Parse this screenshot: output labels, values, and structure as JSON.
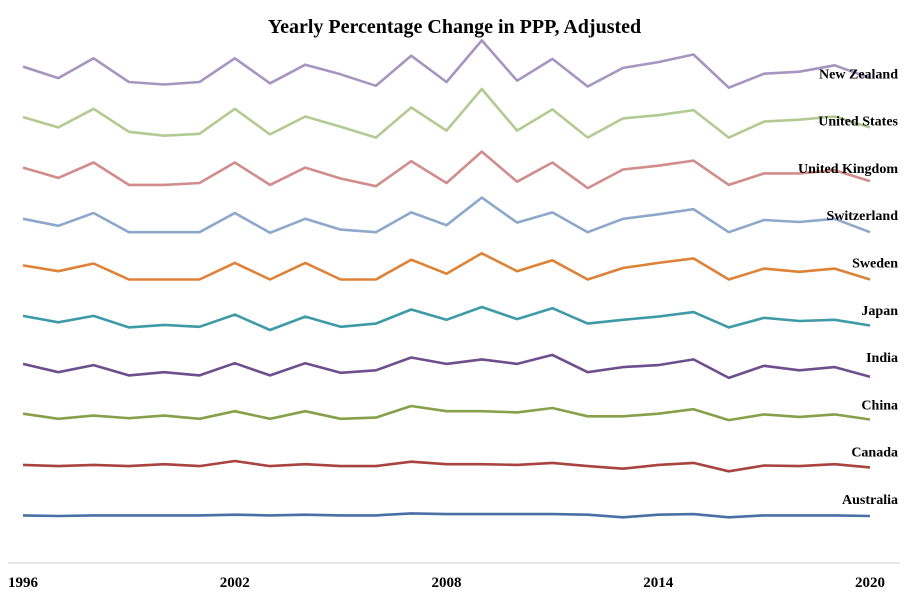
{
  "chart_data": {
    "type": "line",
    "title": "Yearly  Percentage Change in  PPP, Adjusted",
    "xlabel": "",
    "ylabel": "",
    "x": [
      1996,
      1997,
      1998,
      1999,
      2000,
      2001,
      2002,
      2003,
      2004,
      2005,
      2006,
      2007,
      2008,
      2009,
      2010,
      2011,
      2012,
      2013,
      2014,
      2015,
      2016,
      2017,
      2018,
      2019,
      2020
    ],
    "x_ticks": [
      1996,
      2002,
      2008,
      2014,
      2020
    ],
    "xlim": [
      1996,
      2020
    ],
    "layout": "stacked-ridgeline",
    "grid": false,
    "legend": "inline-right",
    "series": [
      {
        "name": "Australia",
        "color": "#4a6fa5",
        "values": [
          0.1,
          0.0,
          0.1,
          0.1,
          0.1,
          0.1,
          0.2,
          0.1,
          0.2,
          0.1,
          0.1,
          0.4,
          0.3,
          0.3,
          0.3,
          0.3,
          0.2,
          -0.2,
          0.2,
          0.3,
          -0.2,
          0.1,
          0.1,
          0.1,
          0.0
        ]
      },
      {
        "name": "Canada",
        "color": "#a84340",
        "values": [
          0.6,
          0.4,
          0.6,
          0.4,
          0.7,
          0.4,
          1.2,
          0.4,
          0.7,
          0.4,
          0.4,
          1.1,
          0.7,
          0.7,
          0.6,
          0.9,
          0.4,
          0.0,
          0.6,
          0.9,
          -0.4,
          0.5,
          0.4,
          0.7,
          0.2
        ]
      },
      {
        "name": "China",
        "color": "#86a14a",
        "values": [
          1.2,
          0.4,
          0.9,
          0.5,
          0.9,
          0.4,
          1.6,
          0.4,
          1.6,
          0.4,
          0.6,
          2.4,
          1.6,
          1.6,
          1.4,
          2.1,
          0.8,
          0.8,
          1.2,
          1.9,
          0.2,
          1.1,
          0.7,
          1.1,
          0.3
        ]
      },
      {
        "name": "India",
        "color": "#6c4f8c",
        "values": [
          1.6,
          0.3,
          1.4,
          -0.2,
          0.3,
          -0.2,
          1.7,
          -0.2,
          1.7,
          0.2,
          0.6,
          2.6,
          1.6,
          2.3,
          1.6,
          3.0,
          0.3,
          1.1,
          1.4,
          2.3,
          -0.6,
          1.3,
          0.6,
          1.1,
          -0.4
        ]
      },
      {
        "name": "Japan",
        "color": "#3f9aa8",
        "values": [
          1.7,
          0.7,
          1.7,
          -0.1,
          0.3,
          0.0,
          1.9,
          -0.5,
          1.6,
          0.0,
          0.5,
          2.7,
          1.1,
          3.1,
          1.2,
          2.9,
          0.5,
          1.1,
          1.6,
          2.3,
          -0.1,
          1.4,
          0.9,
          1.1,
          0.2
        ]
      },
      {
        "name": "Sweden",
        "color": "#dd8237",
        "values": [
          2.2,
          1.3,
          2.5,
          0.0,
          0.0,
          0.0,
          2.6,
          0.0,
          2.6,
          0.0,
          0.0,
          3.1,
          0.9,
          4.1,
          1.3,
          3.0,
          0.0,
          1.8,
          2.6,
          3.3,
          0.0,
          1.7,
          1.2,
          1.7,
          0.0
        ]
      },
      {
        "name": "Switzerland",
        "color": "#8ea8cc",
        "values": [
          2.1,
          1.0,
          3.0,
          0.0,
          0.0,
          0.0,
          3.0,
          -0.1,
          2.1,
          0.4,
          0.0,
          3.1,
          1.1,
          5.4,
          1.5,
          3.1,
          0.0,
          2.1,
          2.8,
          3.6,
          0.0,
          1.9,
          1.6,
          2.1,
          0.0
        ]
      },
      {
        "name": "United Kingdom",
        "color": "#d08d8b",
        "values": [
          2.7,
          1.1,
          3.5,
          0.0,
          0.0,
          0.3,
          3.5,
          0.0,
          2.7,
          1.0,
          -0.2,
          3.7,
          0.3,
          5.2,
          0.5,
          3.5,
          -0.5,
          2.4,
          3.0,
          3.8,
          0.0,
          1.8,
          1.8,
          2.3,
          0.6
        ]
      },
      {
        "name": "United States",
        "color": "#b3cb93",
        "values": [
          3.2,
          1.6,
          4.5,
          0.9,
          0.3,
          0.6,
          4.5,
          0.5,
          3.3,
          1.7,
          0.0,
          4.7,
          1.1,
          7.6,
          1.1,
          4.4,
          0.0,
          3.0,
          3.5,
          4.3,
          0.0,
          2.5,
          2.8,
          3.3,
          1.6
        ]
      },
      {
        "name": "New Zealand",
        "color": "#a595c0",
        "values": [
          3.7,
          1.9,
          5.0,
          1.3,
          0.9,
          1.3,
          5.0,
          1.1,
          4.0,
          2.5,
          0.7,
          5.4,
          1.3,
          7.8,
          1.5,
          4.9,
          0.6,
          3.5,
          4.4,
          5.6,
          0.4,
          2.6,
          2.9,
          3.9,
          1.9
        ]
      }
    ]
  }
}
